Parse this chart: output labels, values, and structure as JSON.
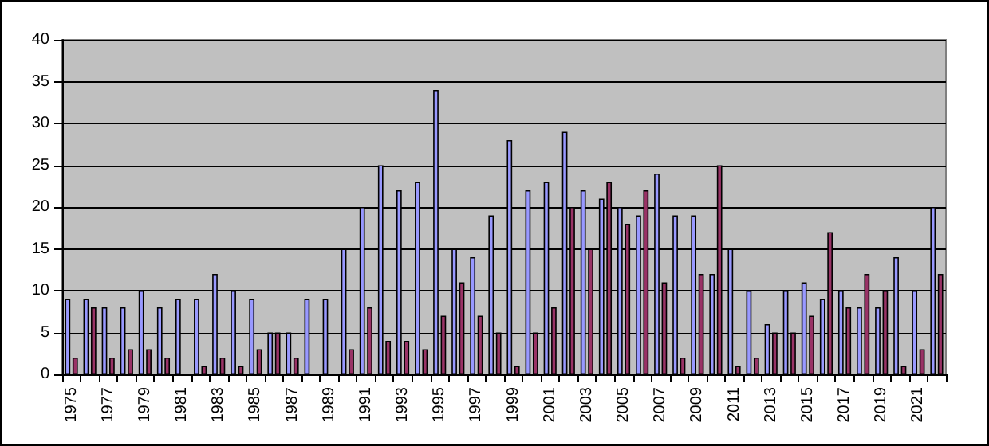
{
  "chart_data": {
    "type": "bar",
    "categories": [
      "1975",
      null,
      "1977",
      null,
      "1979",
      null,
      "1981",
      null,
      "1983",
      null,
      "1985",
      null,
      "1987",
      null,
      "1989",
      null,
      "1991",
      null,
      "1993",
      null,
      "1995",
      null,
      "1997",
      null,
      "1999",
      null,
      "2001",
      null,
      "2003",
      null,
      "2005",
      null,
      "2007",
      null,
      "2009",
      null,
      "2011",
      null,
      "2013",
      null,
      "2015",
      null,
      "2017",
      null,
      "2019",
      null,
      "2021",
      null
    ],
    "series": [
      {
        "color": "#9999ff",
        "values": [
          9,
          9,
          8,
          8,
          10,
          8,
          9,
          9,
          12,
          10,
          9,
          5,
          5,
          9,
          9,
          15,
          20,
          25,
          22,
          23,
          34,
          15,
          14,
          19,
          28,
          22,
          23,
          29,
          22,
          21,
          20,
          19,
          24,
          19,
          19,
          12,
          15,
          10,
          6,
          10,
          11,
          9,
          10,
          8,
          8,
          14,
          10,
          20
        ]
      },
      {
        "color": "#993366",
        "values": [
          2,
          8,
          2,
          3,
          3,
          2,
          0,
          1,
          2,
          1,
          3,
          5,
          2,
          0,
          0,
          3,
          8,
          4,
          4,
          3,
          7,
          11,
          7,
          5,
          1,
          5,
          8,
          20,
          15,
          23,
          18,
          22,
          11,
          2,
          12,
          25,
          1,
          2,
          5,
          5,
          7,
          17,
          8,
          12,
          10,
          1,
          3,
          12
        ]
      }
    ],
    "ylim": [
      0,
      40
    ],
    "yticks": [
      0,
      5,
      10,
      15,
      20,
      25,
      30,
      35,
      40
    ],
    "grid": "y"
  }
}
